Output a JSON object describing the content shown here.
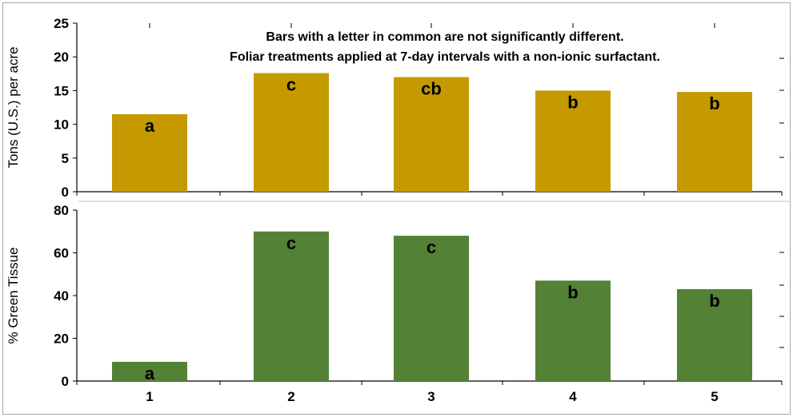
{
  "chart_data": [
    {
      "type": "bar",
      "categories": [
        "1",
        "2",
        "3",
        "4",
        "5"
      ],
      "values": [
        11.5,
        17.6,
        17.0,
        15.0,
        14.8
      ],
      "letters": [
        "a",
        "c",
        "cb",
        "b",
        "b"
      ],
      "ylabel": "Tons (U.S.) per acre",
      "ylim": [
        0,
        25
      ],
      "yticks": [
        "0",
        "5",
        "10",
        "15",
        "20",
        "25"
      ],
      "annotations": [
        "Bars with a letter in common are not significantly different.",
        "Foliar treatments applied at 7-day intervals with a non-ionic surfactant."
      ],
      "bar_color": "#c49a00",
      "grid": false
    },
    {
      "type": "bar",
      "categories": [
        "1",
        "2",
        "3",
        "4",
        "5"
      ],
      "values": [
        9,
        70,
        68,
        47,
        43
      ],
      "letters": [
        "a",
        "c",
        "c",
        "b",
        "b"
      ],
      "ylabel": "% Green Tissue",
      "ylim": [
        0,
        80
      ],
      "yticks": [
        "0",
        "20",
        "40",
        "60",
        "80"
      ],
      "bar_color": "#538135",
      "grid": false
    }
  ]
}
